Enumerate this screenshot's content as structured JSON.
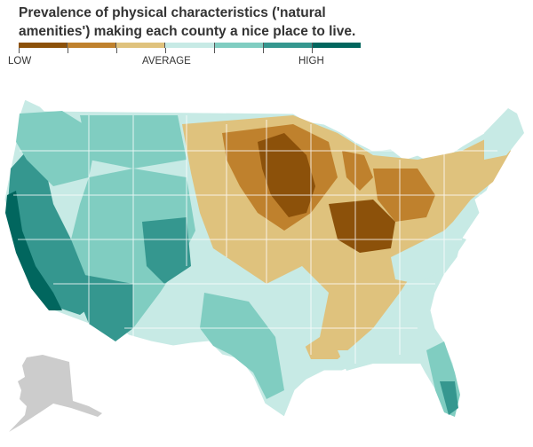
{
  "title": "Prevalence of physical characteristics ('natural amenities') making each county a nice place to live.",
  "legend": {
    "labels": {
      "low": "LOW",
      "average": "AVERAGE",
      "high": "HIGH"
    },
    "colors": [
      "#8c510a",
      "#bf812d",
      "#dfc27d",
      "#c7eae5",
      "#80cdc1",
      "#35978f",
      "#01665e"
    ]
  },
  "map": {
    "alaska_color": "#cccccc",
    "base_color": "#c7eae5"
  }
}
